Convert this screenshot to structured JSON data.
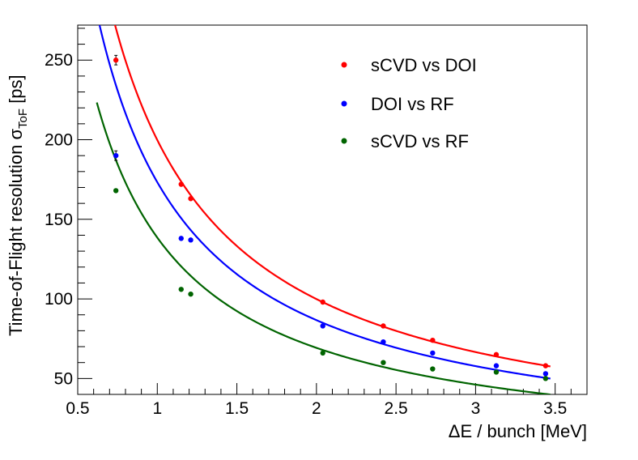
{
  "chart_data": {
    "type": "scatter",
    "title": "",
    "xlabel": "ΔE / bunch [MeV]",
    "ylabel_main": "Time-of-Flight resolution σ",
    "ylabel_subscript": "ToF",
    "ylabel_unit": " [ps]",
    "xlim": [
      0.5,
      3.7
    ],
    "ylim": [
      40,
      272
    ],
    "x_ticks": [
      0.5,
      1,
      1.5,
      2,
      2.5,
      3,
      3.5
    ],
    "x_tick_labels": [
      "0.5",
      "1",
      "1.5",
      "2",
      "2.5",
      "3",
      "3.5"
    ],
    "y_ticks": [
      50,
      100,
      150,
      200,
      250
    ],
    "y_tick_labels": [
      "50",
      "100",
      "150",
      "200",
      "250"
    ],
    "legend_position": "top-right",
    "series": [
      {
        "name": "sCVD vs DOI",
        "color": "#ff0000",
        "x": [
          0.74,
          1.15,
          1.21,
          2.04,
          2.42,
          2.73,
          3.13,
          3.44
        ],
        "y": [
          250,
          172,
          163,
          98,
          83,
          74,
          65,
          58
        ],
        "yerr": [
          3,
          0,
          0,
          0,
          0,
          0,
          0,
          0
        ],
        "fit": {
          "a": 199.8,
          "x_range": [
            0.65,
            3.47
          ]
        }
      },
      {
        "name": "DOI vs RF",
        "color": "#0000ff",
        "x": [
          0.74,
          1.15,
          1.21,
          2.04,
          2.42,
          2.73,
          3.13,
          3.44
        ],
        "y": [
          190,
          138,
          137,
          83,
          73,
          66,
          58,
          53
        ],
        "yerr": [
          3,
          0,
          0,
          0,
          0,
          0,
          0,
          0
        ],
        "fit": {
          "a": 173.3,
          "x_range": [
            0.62,
            3.47
          ]
        }
      },
      {
        "name": "sCVD vs RF",
        "color": "#006400",
        "x": [
          0.74,
          1.15,
          1.21,
          2.04,
          2.42,
          2.73,
          3.13,
          3.44
        ],
        "y": [
          168,
          106,
          103,
          66,
          60,
          56,
          54,
          50
        ],
        "yerr": [
          0,
          0,
          0,
          0,
          0,
          0,
          0,
          0
        ],
        "fit": {
          "a": 138.5,
          "x_range": [
            0.62,
            3.47
          ]
        }
      }
    ]
  }
}
